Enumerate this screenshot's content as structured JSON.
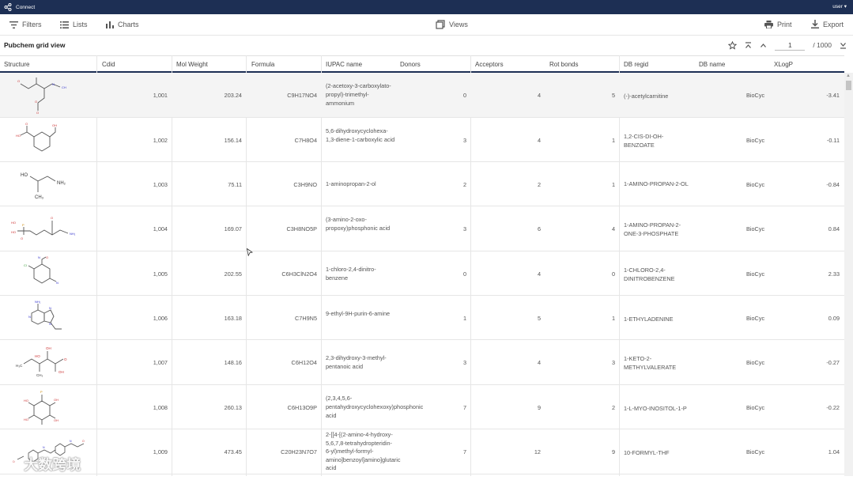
{
  "app": {
    "name": "Connect",
    "user": "user"
  },
  "toolbar": {
    "filters": "Filters",
    "lists": "Lists",
    "charts": "Charts",
    "views": "Views",
    "print": "Print",
    "export": "Export"
  },
  "grid": {
    "title": "Pubchem grid view",
    "page": "1",
    "total": "/ 1000"
  },
  "columns": {
    "structure": "Structure",
    "cdid": "Cdid",
    "mol_weight": "Mol Weight",
    "formula": "Formula",
    "iupac": "IUPAC name",
    "donors": "Donors",
    "acceptors": "Acceptors",
    "rot_bonds": "Rot bonds",
    "db_regid": "DB regid",
    "db_name": "DB name",
    "xlogp": "XLogP"
  },
  "rows": [
    {
      "cdid": "1,001",
      "mw": "203.24",
      "formula": "C9H17NO4",
      "iupac": "(2-acetoxy-3-carboxylato-propyl)-trimethyl-ammonium",
      "donors": "0",
      "acceptors": "4",
      "rot": "5",
      "regid": "(-)-acetylcarnitine",
      "dbname": "BioCyc",
      "xlogp": "-3.41"
    },
    {
      "cdid": "1,002",
      "mw": "156.14",
      "formula": "C7H8O4",
      "iupac": "5,6-dihydroxycyclohexa-1,3-diene-1-carboxylic acid",
      "donors": "3",
      "acceptors": "4",
      "rot": "1",
      "regid": "1,2-CIS-DI-OH-BENZOATE",
      "dbname": "BioCyc",
      "xlogp": "-0.11"
    },
    {
      "cdid": "1,003",
      "mw": "75.11",
      "formula": "C3H9NO",
      "iupac": "1-aminopropan-2-ol",
      "donors": "2",
      "acceptors": "2",
      "rot": "1",
      "regid": "1-AMINO-PROPAN-2-OL",
      "dbname": "BioCyc",
      "xlogp": "-0.84"
    },
    {
      "cdid": "1,004",
      "mw": "169.07",
      "formula": "C3H8NO5P",
      "iupac": "(3-amino-2-oxo-propoxy)phosphonic acid",
      "donors": "3",
      "acceptors": "6",
      "rot": "4",
      "regid": "1-AMINO-PROPAN-2-ONE-3-PHOSPHATE",
      "dbname": "BioCyc",
      "xlogp": "0.84"
    },
    {
      "cdid": "1,005",
      "mw": "202.55",
      "formula": "C6H3ClN2O4",
      "iupac": "1-chloro-2,4-dinitro-benzene",
      "donors": "0",
      "acceptors": "4",
      "rot": "0",
      "regid": "1-CHLORO-2,4-DINITROBENZENE",
      "dbname": "BioCyc",
      "xlogp": "2.33"
    },
    {
      "cdid": "1,006",
      "mw": "163.18",
      "formula": "C7H9N5",
      "iupac": "9-ethyl-9H-purin-6-amine",
      "donors": "1",
      "acceptors": "5",
      "rot": "1",
      "regid": "1-ETHYLADENINE",
      "dbname": "BioCyc",
      "xlogp": "0.09"
    },
    {
      "cdid": "1,007",
      "mw": "148.16",
      "formula": "C6H12O4",
      "iupac": "2,3-dihydroxy-3-methyl-pentanoic acid",
      "donors": "3",
      "acceptors": "4",
      "rot": "3",
      "regid": "1-KETO-2-METHYLVALERATE",
      "dbname": "BioCyc",
      "xlogp": "-0.27"
    },
    {
      "cdid": "1,008",
      "mw": "260.13",
      "formula": "C6H13O9P",
      "iupac": "(2,3,4,5,6-pentahydroxycyclohexoxy)phosphonic acid",
      "donors": "7",
      "acceptors": "9",
      "rot": "2",
      "regid": "1-L-MYO-INOSITOL-1-P",
      "dbname": "BioCyc",
      "xlogp": "-0.22"
    },
    {
      "cdid": "1,009",
      "mw": "473.45",
      "formula": "C20H23N7O7",
      "iupac": "2-[[4-[(2-amino-4-hydroxy-5,6,7,8-tetrahydropteridin-6-yl)methyl-formyl-amino]benzoyl]amino]glutaric acid",
      "donors": "7",
      "acceptors": "12",
      "rot": "9",
      "regid": "10-FORMYL-THF",
      "dbname": "BioCyc",
      "xlogp": "1.04"
    }
  ],
  "watermark": "大数跨境",
  "icons": {
    "logo": "share-network-icon",
    "filters": "filter-lines-icon",
    "lists": "list-icon",
    "charts": "bar-chart-icon",
    "views": "copy-icon",
    "print": "printer-icon",
    "export": "download-icon"
  }
}
